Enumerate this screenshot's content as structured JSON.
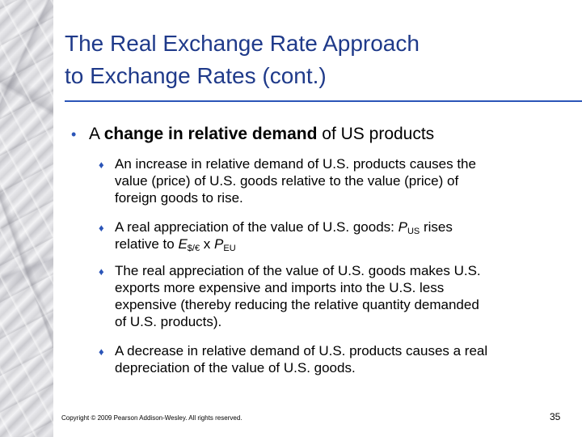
{
  "title": {
    "line1": "The Real Exchange Rate Approach",
    "line2": "to Exchange Rates (cont.)"
  },
  "main_bullet": {
    "prefix": "A ",
    "bold": "change in relative demand",
    "suffix": " of US products"
  },
  "sub_bullets": [
    {
      "lines": [
        "An increase in relative demand of U.S. products causes the",
        "value (price) of U.S. goods relative to the value (price) of",
        "foreign goods to rise."
      ]
    },
    {
      "line1_prefix": "A real appreciation of the value of U.S. goods: ",
      "P1": "P",
      "P1_sub": "US",
      "line1_suffix": " rises",
      "line2_prefix": "relative to ",
      "E": "E",
      "E_sub": "$/€",
      "times": " x ",
      "P2": "P",
      "P2_sub": "EU"
    },
    {
      "lines": [
        "The real appreciation of the value of U.S. goods makes U.S.",
        "exports more expensive and imports into the U.S. less",
        "expensive (thereby reducing the relative quantity demanded",
        "of U.S. products)."
      ]
    },
    {
      "lines": [
        "A decrease in relative demand of U.S. products causes a real",
        "depreciation of the value of U.S. goods."
      ]
    }
  ],
  "footer": "Copyright © 2009 Pearson Addison-Wesley. All rights reserved.",
  "page_number": "35",
  "colors": {
    "title": "#1f3a8a",
    "bullet": "#2b55b8"
  }
}
